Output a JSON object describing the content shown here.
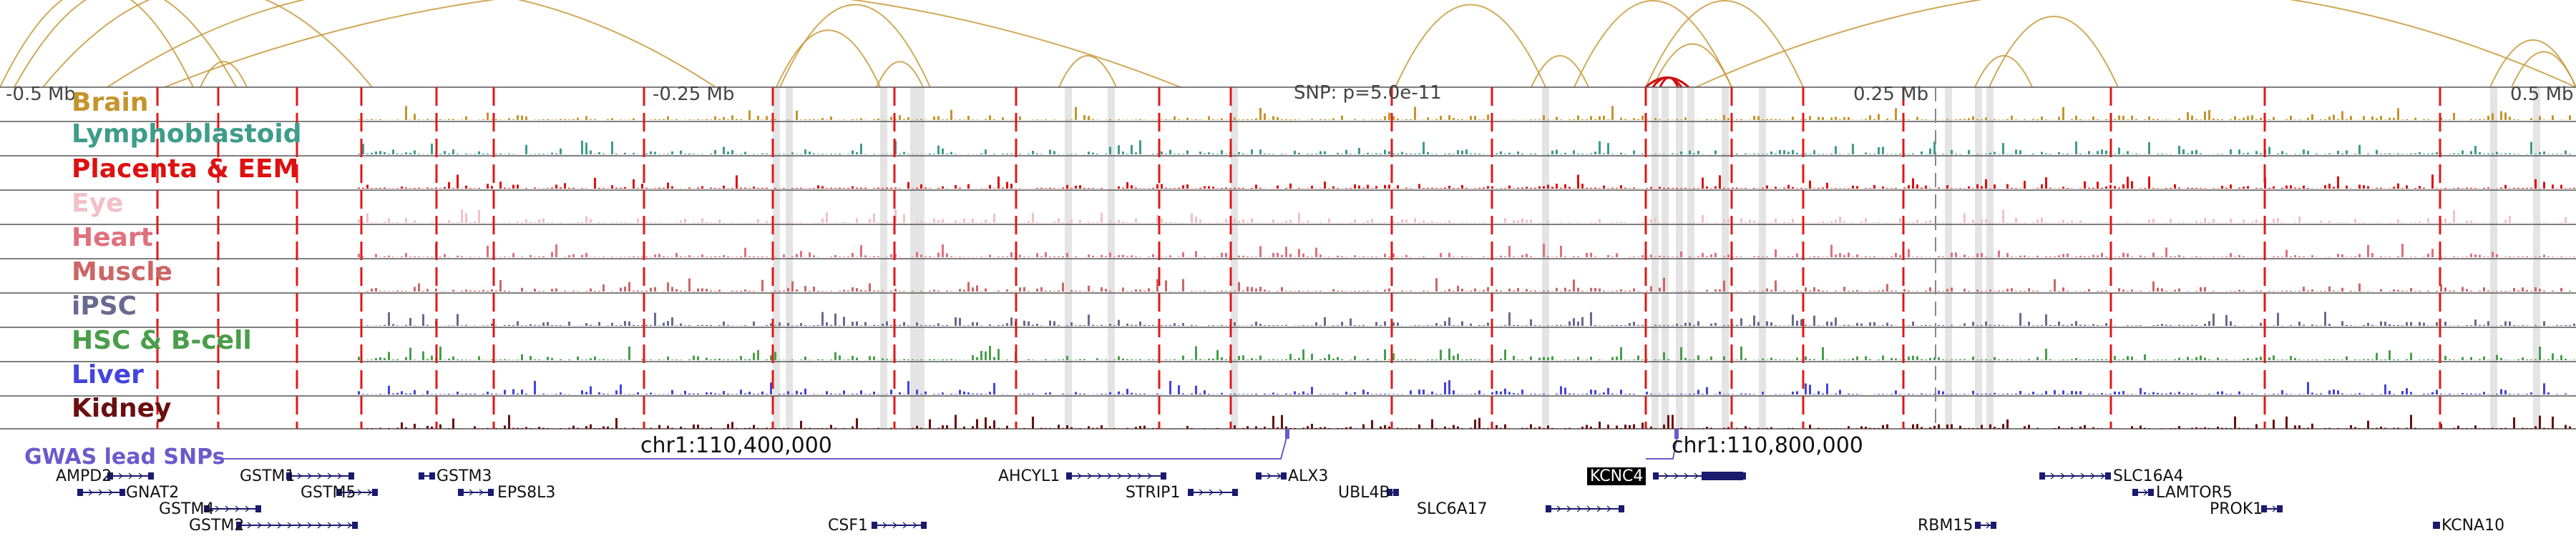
{
  "scale": {
    "left_label": "-0.5 Mb",
    "left_mid_label": "-0.25 Mb",
    "right_mid_label": "0.25 Mb",
    "right_label": "0.5 Mb"
  },
  "snp_info": "SNP: p=5.0e-11",
  "tracks": [
    {
      "label": "Brain",
      "color": "#c4952b"
    },
    {
      "label": "Lymphoblastoid",
      "color": "#3e9c8a"
    },
    {
      "label": "Placenta & EEM",
      "color": "#dd1111"
    },
    {
      "label": "Eye",
      "color": "#f2c0c8"
    },
    {
      "label": "Heart",
      "color": "#e0707e"
    },
    {
      "label": "Muscle",
      "color": "#cc6666"
    },
    {
      "label": "iPSC",
      "color": "#6a6a90"
    },
    {
      "label": "HSC & B-cell",
      "color": "#4a9e4a"
    },
    {
      "label": "Liver",
      "color": "#4444dd"
    },
    {
      "label": "Kidney",
      "color": "#6b0f0f"
    }
  ],
  "gwas": {
    "title": "GWAS lead SNPs",
    "coord_left": "chr1:110,400,000",
    "coord_right": "chr1:110,800,000"
  },
  "genes": [
    {
      "name": "AMPD2",
      "strand": "+"
    },
    {
      "name": "GNAT2",
      "strand": "-"
    },
    {
      "name": "GSTM1",
      "strand": "+"
    },
    {
      "name": "GSTM5",
      "strand": "+"
    },
    {
      "name": "GSTM4",
      "strand": "+"
    },
    {
      "name": "GSTM2",
      "strand": "+"
    },
    {
      "name": "GSTM3",
      "strand": "-"
    },
    {
      "name": "EPS8L3",
      "strand": "-"
    },
    {
      "name": "CSF1",
      "strand": "+"
    },
    {
      "name": "AHCYL1",
      "strand": "+"
    },
    {
      "name": "STRIP1",
      "strand": "+"
    },
    {
      "name": "ALX3",
      "strand": "-"
    },
    {
      "name": "UBL4B",
      "strand": "+"
    },
    {
      "name": "SLC6A17",
      "strand": "+"
    },
    {
      "name": "KCNC4",
      "strand": "+"
    },
    {
      "name": "RBM15",
      "strand": "+"
    },
    {
      "name": "SLC16A4",
      "strand": "-"
    },
    {
      "name": "LAMTOR5",
      "strand": "-"
    },
    {
      "name": "PROK1",
      "strand": "+"
    },
    {
      "name": "KCNA10",
      "strand": "-"
    }
  ],
  "colors": {
    "arc": "#c89a3c",
    "focus_arc": "#cc1111",
    "red_marker": "#e01818",
    "gene_model": "#1a1a6e",
    "gwas": "#6a5acd"
  }
}
